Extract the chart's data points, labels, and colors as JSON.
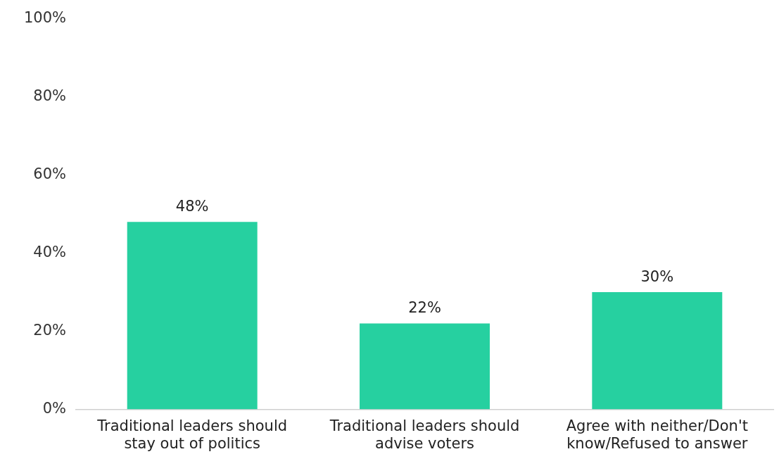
{
  "chart_data": {
    "type": "bar",
    "categories": [
      "Traditional leaders should stay out of politics",
      "Traditional leaders should advise voters",
      "Agree with neither/Don't know/Refused to answer"
    ],
    "values": [
      48,
      22,
      30
    ],
    "color": "#26d0a0",
    "ylim": [
      0,
      100
    ],
    "yticks": [
      {
        "value": 0,
        "label": "0%"
      },
      {
        "value": 20,
        "label": "20%"
      },
      {
        "value": 40,
        "label": "40%"
      },
      {
        "value": 60,
        "label": "60%"
      },
      {
        "value": 80,
        "label": "80%"
      },
      {
        "value": 100,
        "label": "100%"
      }
    ],
    "value_labels": [
      "48%",
      "22%",
      "30%"
    ],
    "grid": false
  }
}
